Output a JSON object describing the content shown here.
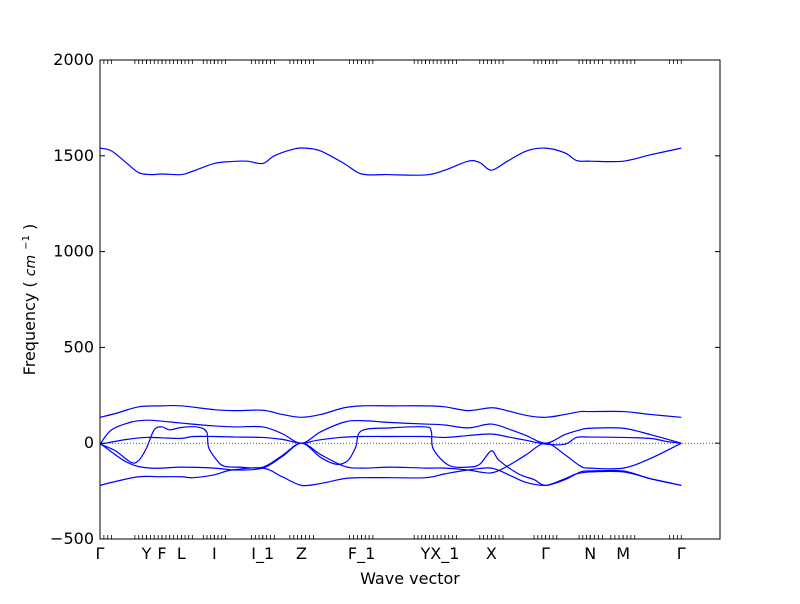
{
  "chart_data": {
    "type": "line",
    "title": "",
    "xlabel": "Wave vector",
    "ylabel": "Frequency",
    "ylabel_math": "cm",
    "ylabel_exp": "−1",
    "ylim": [
      -500,
      2000
    ],
    "yticks": [
      "2000",
      "1500",
      "1000",
      "500",
      "0",
      "−500"
    ],
    "ytick_values": [
      2000,
      1500,
      1000,
      500,
      0,
      -500
    ],
    "xlim": [
      0,
      16
    ],
    "high_symmetry_points": [
      {
        "label": "Γ",
        "x": 0
      },
      {
        "label": "Y",
        "x": 1.2
      },
      {
        "label": "F",
        "x": 1.6
      },
      {
        "label": "L",
        "x": 2.1
      },
      {
        "label": "I",
        "x": 2.95
      },
      {
        "label": "I_1",
        "x": 4.2
      },
      {
        "label": "Z",
        "x": 5.2
      },
      {
        "label": "F_1",
        "x": 6.75
      },
      {
        "label": "Y",
        "x": 8.4
      },
      {
        "label": "X_1",
        "x": 8.9
      },
      {
        "label": "X",
        "x": 10.1
      },
      {
        "label": "Γ",
        "x": 11.5
      },
      {
        "label": "N",
        "x": 12.65
      },
      {
        "label": "M",
        "x": 13.5
      },
      {
        "label": "Γ",
        "x": 15.0
      }
    ],
    "zero_line": true,
    "line_color": "#0000ff",
    "series": [
      {
        "values": [
          [
            0,
            1540
          ],
          [
            0.3,
            1525
          ],
          [
            0.7,
            1460
          ],
          [
            1.0,
            1412
          ],
          [
            1.3,
            1402
          ],
          [
            1.6,
            1405
          ],
          [
            2.1,
            1402
          ],
          [
            2.4,
            1420
          ],
          [
            2.95,
            1460
          ],
          [
            3.4,
            1470
          ],
          [
            3.8,
            1472
          ],
          [
            4.2,
            1460
          ],
          [
            4.5,
            1500
          ],
          [
            5.0,
            1535
          ],
          [
            5.3,
            1540
          ],
          [
            5.7,
            1525
          ],
          [
            6.3,
            1460
          ],
          [
            6.75,
            1405
          ],
          [
            7.4,
            1402
          ],
          [
            8.4,
            1400
          ],
          [
            8.9,
            1425
          ],
          [
            9.5,
            1472
          ],
          [
            9.8,
            1465
          ],
          [
            10.1,
            1425
          ],
          [
            10.5,
            1470
          ],
          [
            11.0,
            1525
          ],
          [
            11.5,
            1540
          ],
          [
            12.0,
            1515
          ],
          [
            12.3,
            1475
          ],
          [
            12.65,
            1472
          ],
          [
            13.5,
            1472
          ],
          [
            14.2,
            1505
          ],
          [
            15.0,
            1540
          ]
        ]
      },
      {
        "values": [
          [
            0,
            135
          ],
          [
            0.4,
            155
          ],
          [
            1.0,
            190
          ],
          [
            1.6,
            195
          ],
          [
            2.1,
            195
          ],
          [
            2.95,
            175
          ],
          [
            3.5,
            170
          ],
          [
            4.2,
            172
          ],
          [
            4.7,
            150
          ],
          [
            5.2,
            135
          ],
          [
            5.7,
            150
          ],
          [
            6.3,
            185
          ],
          [
            6.75,
            195
          ],
          [
            7.5,
            195
          ],
          [
            8.4,
            195
          ],
          [
            8.9,
            190
          ],
          [
            9.5,
            170
          ],
          [
            10.1,
            185
          ],
          [
            10.5,
            170
          ],
          [
            11.0,
            145
          ],
          [
            11.5,
            135
          ],
          [
            12.0,
            150
          ],
          [
            12.4,
            165
          ],
          [
            12.65,
            165
          ],
          [
            13.5,
            165
          ],
          [
            14.2,
            150
          ],
          [
            15.0,
            135
          ]
        ]
      },
      {
        "values": [
          [
            0,
            -5
          ],
          [
            0.3,
            70
          ],
          [
            0.8,
            110
          ],
          [
            1.2,
            120
          ],
          [
            1.6,
            115
          ],
          [
            2.1,
            105
          ],
          [
            2.95,
            90
          ],
          [
            3.5,
            85
          ],
          [
            4.2,
            85
          ],
          [
            4.7,
            50
          ],
          [
            5.2,
            0
          ],
          [
            5.7,
            60
          ],
          [
            6.3,
            110
          ],
          [
            6.75,
            118
          ],
          [
            7.5,
            108
          ],
          [
            8.4,
            100
          ],
          [
            8.9,
            95
          ],
          [
            9.5,
            80
          ],
          [
            10.1,
            100
          ],
          [
            10.6,
            70
          ],
          [
            11.0,
            40
          ],
          [
            11.5,
            0
          ],
          [
            12.0,
            45
          ],
          [
            12.4,
            70
          ],
          [
            12.65,
            78
          ],
          [
            13.5,
            78
          ],
          [
            14.2,
            45
          ],
          [
            15.0,
            0
          ]
        ]
      },
      {
        "values": [
          [
            0,
            -5
          ],
          [
            0.4,
            -40
          ],
          [
            0.8,
            -100
          ],
          [
            1.0,
            -90
          ],
          [
            1.2,
            -25
          ],
          [
            1.4,
            70
          ],
          [
            1.6,
            85
          ],
          [
            1.8,
            70
          ],
          [
            2.1,
            82
          ],
          [
            2.5,
            85
          ],
          [
            2.75,
            60
          ],
          [
            2.8,
            -20
          ],
          [
            3.0,
            -85
          ],
          [
            3.2,
            -120
          ],
          [
            3.6,
            -125
          ],
          [
            4.2,
            -125
          ],
          [
            4.7,
            -65
          ],
          [
            5.2,
            0
          ],
          [
            5.7,
            -75
          ],
          [
            6.1,
            -110
          ],
          [
            6.4,
            -90
          ],
          [
            6.6,
            -20
          ],
          [
            6.75,
            65
          ],
          [
            7.5,
            80
          ],
          [
            8.4,
            85
          ],
          [
            8.55,
            60
          ],
          [
            8.6,
            -30
          ],
          [
            9.0,
            -115
          ],
          [
            9.5,
            -125
          ],
          [
            9.8,
            -110
          ],
          [
            10.1,
            -40
          ],
          [
            10.3,
            -90
          ],
          [
            10.8,
            -160
          ],
          [
            11.2,
            -190
          ],
          [
            11.5,
            -220
          ],
          [
            12.0,
            -185
          ],
          [
            12.3,
            -160
          ],
          [
            12.65,
            -150
          ],
          [
            13.5,
            -150
          ],
          [
            14.2,
            -185
          ],
          [
            15.0,
            -220
          ]
        ]
      },
      {
        "values": [
          [
            0,
            -5
          ],
          [
            0.7,
            20
          ],
          [
            1.2,
            30
          ],
          [
            1.6,
            28
          ],
          [
            2.1,
            25
          ],
          [
            2.4,
            35
          ],
          [
            2.95,
            35
          ],
          [
            3.5,
            32
          ],
          [
            4.2,
            30
          ],
          [
            4.7,
            20
          ],
          [
            5.2,
            0
          ],
          [
            5.6,
            15
          ],
          [
            6.2,
            30
          ],
          [
            6.75,
            35
          ],
          [
            7.5,
            35
          ],
          [
            8.4,
            35
          ],
          [
            8.9,
            30
          ],
          [
            9.5,
            40
          ],
          [
            10.1,
            48
          ],
          [
            10.6,
            30
          ],
          [
            11.0,
            15
          ],
          [
            11.5,
            -5
          ],
          [
            12.0,
            -5
          ],
          [
            12.3,
            30
          ],
          [
            12.65,
            32
          ],
          [
            13.5,
            30
          ],
          [
            14.2,
            25
          ],
          [
            14.6,
            10
          ],
          [
            15.0,
            0
          ]
        ]
      },
      {
        "values": [
          [
            0,
            0
          ],
          [
            0.7,
            -100
          ],
          [
            1.3,
            -130
          ],
          [
            2.1,
            -125
          ],
          [
            2.95,
            -130
          ],
          [
            3.5,
            -140
          ],
          [
            4.2,
            -130
          ],
          [
            4.7,
            -70
          ],
          [
            5.2,
            0
          ],
          [
            5.7,
            -60
          ],
          [
            6.3,
            -120
          ],
          [
            6.75,
            -130
          ],
          [
            7.5,
            -125
          ],
          [
            8.4,
            -130
          ],
          [
            8.9,
            -130
          ],
          [
            9.5,
            -140
          ],
          [
            10.1,
            -155
          ],
          [
            10.6,
            -110
          ],
          [
            11.0,
            -60
          ],
          [
            11.5,
            0
          ],
          [
            12.0,
            -60
          ],
          [
            12.4,
            -120
          ],
          [
            12.65,
            -130
          ],
          [
            13.5,
            -130
          ],
          [
            14.2,
            -80
          ],
          [
            15.0,
            0
          ]
        ]
      },
      {
        "values": [
          [
            0,
            -220
          ],
          [
            0.4,
            -200
          ],
          [
            1.0,
            -175
          ],
          [
            1.6,
            -175
          ],
          [
            2.1,
            -175
          ],
          [
            2.4,
            -180
          ],
          [
            2.95,
            -165
          ],
          [
            3.4,
            -140
          ],
          [
            4.2,
            -130
          ],
          [
            4.7,
            -175
          ],
          [
            5.2,
            -220
          ],
          [
            5.7,
            -210
          ],
          [
            6.3,
            -185
          ],
          [
            6.75,
            -180
          ],
          [
            7.5,
            -180
          ],
          [
            8.4,
            -180
          ],
          [
            8.9,
            -160
          ],
          [
            9.5,
            -140
          ],
          [
            10.1,
            -130
          ],
          [
            10.6,
            -170
          ],
          [
            11.0,
            -205
          ],
          [
            11.5,
            -220
          ],
          [
            12.0,
            -190
          ],
          [
            12.4,
            -150
          ],
          [
            12.65,
            -145
          ],
          [
            13.5,
            -145
          ],
          [
            14.2,
            -185
          ],
          [
            15.0,
            -220
          ]
        ]
      }
    ]
  }
}
